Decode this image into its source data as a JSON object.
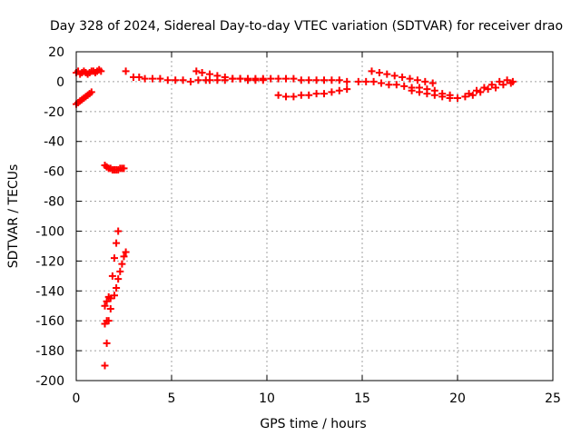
{
  "chart_data": {
    "type": "scatter",
    "title": "Day 328 of 2024, Sidereal Day-to-day VTEC variation (SDTVAR) for receiver drao",
    "xlabel": "GPS time / hours",
    "ylabel": "SDTVAR / TECUs",
    "xlim": [
      0,
      25
    ],
    "ylim": [
      -200,
      20
    ],
    "xticks": [
      0,
      5,
      10,
      15,
      20,
      25
    ],
    "yticks": [
      20,
      0,
      -20,
      -40,
      -60,
      -80,
      -100,
      -120,
      -140,
      -160,
      -180,
      -200
    ],
    "grid": true,
    "legend": "none",
    "marker_color": "#ff0000",
    "series": [
      {
        "points": [
          [
            0.0,
            6
          ],
          [
            0.1,
            7
          ],
          [
            0.2,
            5
          ],
          [
            0.3,
            6
          ],
          [
            0.4,
            7
          ],
          [
            0.5,
            6
          ],
          [
            0.6,
            5
          ],
          [
            0.7,
            6
          ],
          [
            0.8,
            7
          ],
          [
            0.9,
            7
          ],
          [
            1.0,
            6
          ],
          [
            1.1,
            7
          ],
          [
            1.2,
            8
          ],
          [
            1.3,
            7
          ],
          [
            0.0,
            -15
          ],
          [
            0.1,
            -14
          ],
          [
            0.2,
            -13
          ],
          [
            0.3,
            -12
          ],
          [
            0.4,
            -11
          ],
          [
            0.5,
            -10
          ],
          [
            0.6,
            -9
          ],
          [
            0.7,
            -8
          ],
          [
            0.8,
            -7
          ],
          [
            1.5,
            -56
          ],
          [
            1.6,
            -57
          ],
          [
            1.7,
            -58
          ],
          [
            1.8,
            -58
          ],
          [
            1.9,
            -59
          ],
          [
            2.0,
            -59
          ],
          [
            2.1,
            -59
          ],
          [
            2.2,
            -59
          ],
          [
            2.3,
            -58
          ],
          [
            2.4,
            -58
          ],
          [
            2.5,
            -58
          ],
          [
            1.5,
            -190
          ],
          [
            1.6,
            -175
          ],
          [
            1.7,
            -160
          ],
          [
            1.8,
            -145
          ],
          [
            1.9,
            -130
          ],
          [
            2.0,
            -118
          ],
          [
            2.1,
            -108
          ],
          [
            2.2,
            -100
          ],
          [
            1.5,
            -162
          ],
          [
            1.6,
            -160
          ],
          [
            1.8,
            -152
          ],
          [
            2.0,
            -143
          ],
          [
            2.1,
            -138
          ],
          [
            2.2,
            -132
          ],
          [
            2.3,
            -127
          ],
          [
            2.4,
            -122
          ],
          [
            2.5,
            -117
          ],
          [
            2.6,
            -114
          ],
          [
            1.5,
            -150
          ],
          [
            1.6,
            -147
          ],
          [
            1.7,
            -144
          ],
          [
            2.6,
            7
          ],
          [
            3.0,
            3
          ],
          [
            3.3,
            3
          ],
          [
            3.6,
            2
          ],
          [
            4.0,
            2
          ],
          [
            4.4,
            2
          ],
          [
            4.8,
            1
          ],
          [
            5.2,
            1
          ],
          [
            5.6,
            1
          ],
          [
            6.0,
            0
          ],
          [
            6.4,
            1
          ],
          [
            6.8,
            1
          ],
          [
            6.3,
            7
          ],
          [
            6.6,
            6
          ],
          [
            7.0,
            5
          ],
          [
            7.4,
            4
          ],
          [
            7.8,
            3
          ],
          [
            8.2,
            2
          ],
          [
            8.6,
            2
          ],
          [
            9.0,
            1
          ],
          [
            9.4,
            1
          ],
          [
            9.8,
            1
          ],
          [
            7.0,
            1
          ],
          [
            7.4,
            1
          ],
          [
            7.8,
            1
          ],
          [
            8.2,
            2
          ],
          [
            8.6,
            2
          ],
          [
            9.0,
            2
          ],
          [
            9.4,
            2
          ],
          [
            9.8,
            2
          ],
          [
            10.2,
            2
          ],
          [
            10.6,
            2
          ],
          [
            11.0,
            2
          ],
          [
            11.4,
            2
          ],
          [
            11.8,
            1
          ],
          [
            12.2,
            1
          ],
          [
            12.6,
            1
          ],
          [
            13.0,
            1
          ],
          [
            13.4,
            1
          ],
          [
            13.8,
            1
          ],
          [
            14.2,
            0
          ],
          [
            10.6,
            -9
          ],
          [
            11.0,
            -10
          ],
          [
            11.4,
            -10
          ],
          [
            11.8,
            -9
          ],
          [
            12.2,
            -9
          ],
          [
            12.6,
            -8
          ],
          [
            13.0,
            -8
          ],
          [
            13.4,
            -7
          ],
          [
            13.8,
            -6
          ],
          [
            14.2,
            -5
          ],
          [
            14.8,
            0
          ],
          [
            15.2,
            0
          ],
          [
            15.6,
            0
          ],
          [
            16.0,
            -1
          ],
          [
            16.4,
            -2
          ],
          [
            16.8,
            -2
          ],
          [
            17.2,
            -3
          ],
          [
            17.6,
            -4
          ],
          [
            18.0,
            -4
          ],
          [
            18.4,
            -5
          ],
          [
            18.8,
            -6
          ],
          [
            19.2,
            -8
          ],
          [
            19.6,
            -9
          ],
          [
            15.5,
            7
          ],
          [
            15.9,
            6
          ],
          [
            16.3,
            5
          ],
          [
            16.7,
            4
          ],
          [
            17.1,
            3
          ],
          [
            17.5,
            2
          ],
          [
            17.9,
            1
          ],
          [
            18.3,
            0
          ],
          [
            18.7,
            -1
          ],
          [
            17.6,
            -6
          ],
          [
            18.0,
            -7
          ],
          [
            18.4,
            -8
          ],
          [
            18.8,
            -9
          ],
          [
            19.2,
            -10
          ],
          [
            19.6,
            -11
          ],
          [
            20.0,
            -11
          ],
          [
            20.4,
            -10
          ],
          [
            20.8,
            -9
          ],
          [
            21.2,
            -7
          ],
          [
            21.6,
            -5
          ],
          [
            22.0,
            -4
          ],
          [
            22.4,
            -2
          ],
          [
            22.8,
            -1
          ],
          [
            20.6,
            -8
          ],
          [
            21.0,
            -6
          ],
          [
            21.4,
            -4
          ],
          [
            21.8,
            -2
          ],
          [
            22.2,
            0
          ],
          [
            22.6,
            1
          ],
          [
            22.9,
            0
          ]
        ]
      }
    ]
  }
}
